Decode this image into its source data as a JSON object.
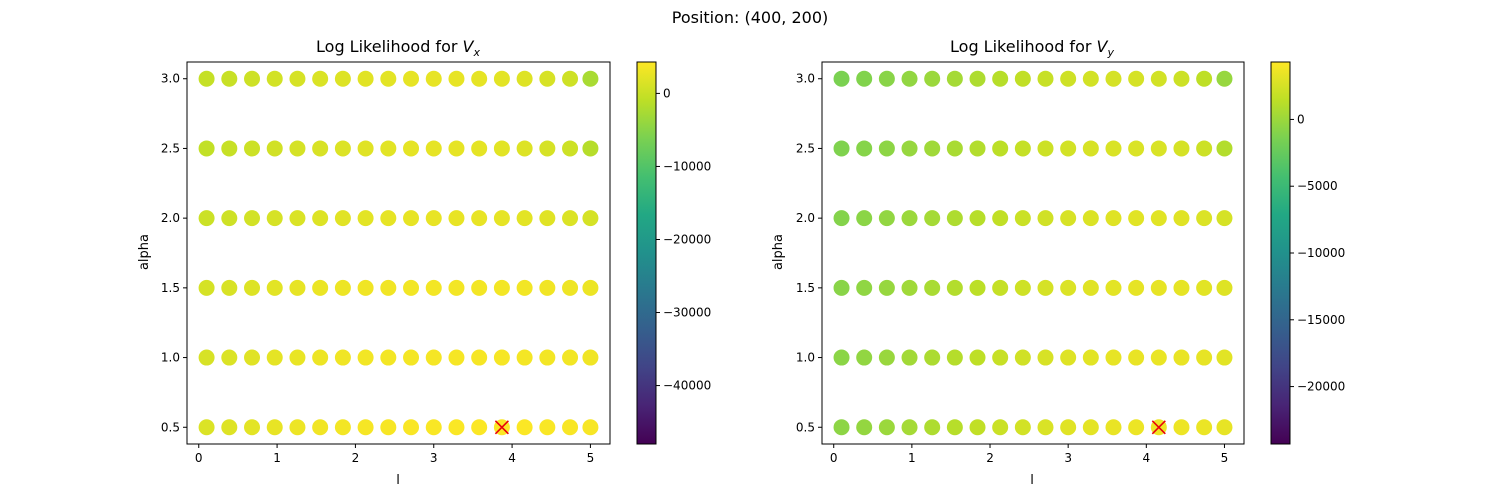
{
  "suptitle": "Position: (400, 200)",
  "chart_data": [
    {
      "type": "scatter",
      "title": "Log Likelihood for ",
      "title_subscript": "V",
      "title_subscript_index": "x",
      "xlabel": "l",
      "ylabel": "alpha",
      "xlim": [
        -0.15,
        5.25
      ],
      "ylim": [
        0.38,
        3.12
      ],
      "xticks": [
        0,
        1,
        2,
        3,
        4,
        5
      ],
      "yticks": [
        0.5,
        1.0,
        1.5,
        2.0,
        2.5,
        3.0
      ],
      "ytick_labels": [
        "0.5",
        "1.0",
        "1.5",
        "2.0",
        "2.5",
        "3.0"
      ],
      "l_values": [
        0.1,
        0.39,
        0.68,
        0.97,
        1.26,
        1.55,
        1.84,
        2.13,
        2.42,
        2.71,
        3.0,
        3.29,
        3.58,
        3.87,
        4.16,
        4.45,
        4.74,
        5.0
      ],
      "alpha_values": [
        0.5,
        1.0,
        1.5,
        2.0,
        2.5,
        3.0
      ],
      "log_likelihood_rows": [
        [
          1500,
          1800,
          2200,
          2600,
          3000,
          3300,
          3500,
          3700,
          3850,
          3950,
          4000,
          4050,
          4100,
          4150,
          4100,
          4000,
          3900,
          3800
        ],
        [
          1200,
          1500,
          1900,
          2300,
          2700,
          3000,
          3200,
          3400,
          3500,
          3600,
          3650,
          3700,
          3700,
          3700,
          3600,
          3500,
          3400,
          3200
        ],
        [
          1000,
          1300,
          1700,
          2100,
          2500,
          2800,
          3000,
          3200,
          3300,
          3400,
          3450,
          3500,
          3500,
          3450,
          3400,
          3300,
          3100,
          2900
        ],
        [
          200,
          500,
          800,
          1100,
          1400,
          1700,
          2000,
          2200,
          2400,
          2500,
          2600,
          2600,
          2550,
          2400,
          2200,
          1900,
          1500,
          1000
        ],
        [
          -500,
          -100,
          300,
          700,
          1000,
          1300,
          1600,
          1900,
          2100,
          2300,
          2400,
          2400,
          2300,
          2100,
          1700,
          1100,
          400,
          -1500
        ],
        [
          -300,
          0,
          400,
          800,
          1100,
          1400,
          1700,
          2000,
          2200,
          2400,
          2500,
          2500,
          2400,
          2200,
          1800,
          1200,
          500,
          -2500
        ]
      ],
      "best_fit": {
        "l": 3.87,
        "alpha": 0.5,
        "marker": "x",
        "color": "#e8000b"
      },
      "colorbar": {
        "colormap": "viridis",
        "vmin": -48000,
        "vmax": 4300,
        "ticks": [
          0,
          -10000,
          -20000,
          -30000,
          -40000
        ],
        "tick_labels": [
          "0",
          "−10000",
          "−20000",
          "−30000",
          "−40000"
        ]
      }
    },
    {
      "type": "scatter",
      "title": "Log Likelihood for ",
      "title_subscript": "V",
      "title_subscript_index": "y",
      "xlabel": "l",
      "ylabel": "alpha",
      "xlim": [
        -0.15,
        5.25
      ],
      "ylim": [
        0.38,
        3.12
      ],
      "xticks": [
        0,
        1,
        2,
        3,
        4,
        5
      ],
      "yticks": [
        0.5,
        1.0,
        1.5,
        2.0,
        2.5,
        3.0
      ],
      "ytick_labels": [
        "0.5",
        "1.0",
        "1.5",
        "2.0",
        "2.5",
        "3.0"
      ],
      "l_values": [
        0.1,
        0.39,
        0.68,
        0.97,
        1.26,
        1.55,
        1.84,
        2.13,
        2.42,
        2.71,
        3.0,
        3.29,
        3.58,
        3.87,
        4.16,
        4.45,
        4.74,
        5.0
      ],
      "alpha_values": [
        0.5,
        1.0,
        1.5,
        2.0,
        2.5,
        3.0
      ],
      "log_likelihood_rows": [
        [
          -600,
          -300,
          0,
          400,
          800,
          1200,
          1600,
          2000,
          2400,
          2700,
          3000,
          3200,
          3400,
          3550,
          3650,
          3600,
          3500,
          3300
        ],
        [
          -700,
          -400,
          -100,
          300,
          700,
          1100,
          1500,
          1900,
          2300,
          2600,
          2900,
          3100,
          3300,
          3400,
          3450,
          3400,
          3300,
          3100
        ],
        [
          -800,
          -500,
          -200,
          200,
          600,
          1000,
          1400,
          1800,
          2200,
          2500,
          2800,
          3000,
          3150,
          3250,
          3300,
          3250,
          3100,
          2900
        ],
        [
          -1000,
          -700,
          -400,
          0,
          400,
          800,
          1200,
          1600,
          2000,
          2300,
          2600,
          2800,
          2950,
          3050,
          3050,
          3000,
          2800,
          2500
        ],
        [
          -1200,
          -900,
          -600,
          -200,
          200,
          600,
          1000,
          1400,
          1800,
          2100,
          2400,
          2600,
          2700,
          2750,
          2700,
          2500,
          2100,
          1000
        ],
        [
          -1400,
          -1100,
          -800,
          -400,
          0,
          400,
          800,
          1200,
          1600,
          1900,
          2200,
          2400,
          2500,
          2500,
          2400,
          2100,
          1500,
          -200
        ]
      ],
      "best_fit": {
        "l": 4.16,
        "alpha": 0.5,
        "marker": "x",
        "color": "#e8000b"
      },
      "colorbar": {
        "colormap": "viridis",
        "vmin": -24300,
        "vmax": 4300,
        "ticks": [
          0,
          -5000,
          -10000,
          -15000,
          -20000
        ],
        "tick_labels": [
          "0",
          "−5000",
          "−10000",
          "−15000",
          "−20000"
        ]
      }
    }
  ]
}
